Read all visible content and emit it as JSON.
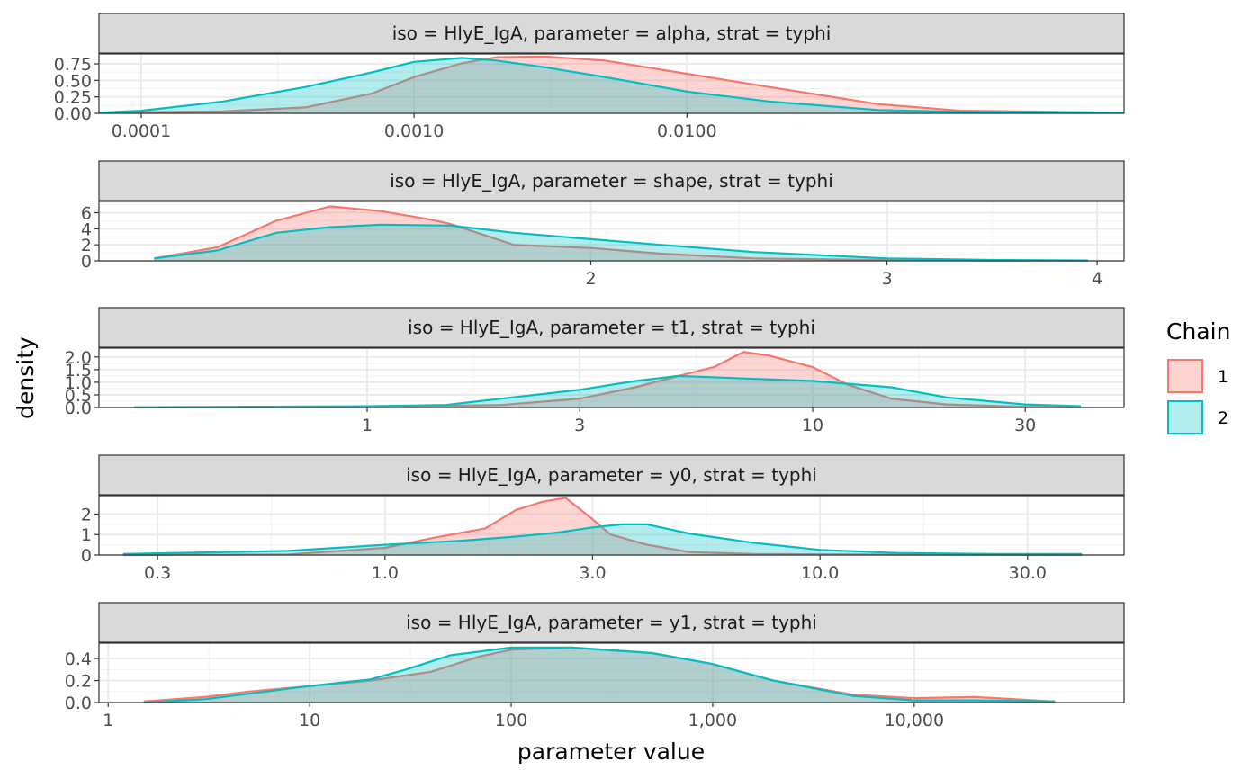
{
  "chart_data": {
    "type": "area",
    "chart_kind": "faceted density plot",
    "facets": [
      {
        "strip_label": "iso = HlyE_IgA, parameter = alpha, strat = typhi",
        "x_scale": "log10",
        "xlim": [
          7e-05,
          0.4
        ],
        "ylim": [
          0,
          0.9
        ],
        "x_ticks": [
          {
            "value": 0.0001,
            "label": "0.0001"
          },
          {
            "value": 0.001,
            "label": "0.0010"
          },
          {
            "value": 0.01,
            "label": "0.0100"
          }
        ],
        "y_ticks": [
          {
            "value": 0,
            "label": "0.00"
          },
          {
            "value": 0.25,
            "label": "0.25"
          },
          {
            "value": 0.5,
            "label": "0.50"
          },
          {
            "value": 0.75,
            "label": "0.75"
          }
        ],
        "series": [
          {
            "chain": "1",
            "x": [
              7e-05,
              0.0002,
              0.0004,
              0.0007,
              0.001,
              0.0015,
              0.002,
              0.003,
              0.005,
              0.01,
              0.02,
              0.05,
              0.1,
              0.4
            ],
            "y": [
              0.01,
              0.03,
              0.09,
              0.3,
              0.55,
              0.76,
              0.85,
              0.86,
              0.8,
              0.6,
              0.4,
              0.14,
              0.04,
              0.01
            ]
          },
          {
            "chain": "2",
            "x": [
              7e-05,
              0.0001,
              0.0002,
              0.0004,
              0.0007,
              0.001,
              0.0015,
              0.002,
              0.003,
              0.005,
              0.01,
              0.02,
              0.05,
              0.1,
              0.4
            ],
            "y": [
              0.01,
              0.04,
              0.18,
              0.4,
              0.62,
              0.78,
              0.84,
              0.8,
              0.7,
              0.55,
              0.33,
              0.18,
              0.05,
              0.02,
              0.01
            ]
          }
        ]
      },
      {
        "strip_label": "iso = HlyE_IgA, parameter = shape, strat = typhi",
        "x_scale": "log10",
        "xlim": [
          1.02,
          4.15
        ],
        "ylim": [
          0,
          7.4
        ],
        "x_ticks": [
          {
            "value": 2,
            "label": "2"
          },
          {
            "value": 3,
            "label": "3"
          },
          {
            "value": 4,
            "label": "4"
          }
        ],
        "y_ticks": [
          {
            "value": 0,
            "label": "0"
          },
          {
            "value": 2,
            "label": "2"
          },
          {
            "value": 4,
            "label": "4"
          },
          {
            "value": 6,
            "label": "6"
          }
        ],
        "series": [
          {
            "chain": "1",
            "x": [
              1.1,
              1.2,
              1.3,
              1.4,
              1.5,
              1.6,
              1.65,
              1.8,
              2.0,
              2.2,
              2.5,
              3.0,
              3.5,
              3.95
            ],
            "y": [
              0.3,
              1.7,
              5.0,
              6.8,
              6.2,
              5.2,
              4.6,
              2.0,
              1.6,
              0.9,
              0.3,
              0.1,
              0.05,
              0.02
            ]
          },
          {
            "chain": "2",
            "x": [
              1.1,
              1.2,
              1.3,
              1.4,
              1.5,
              1.65,
              1.8,
              2.0,
              2.2,
              2.5,
              3.0,
              3.5,
              3.95
            ],
            "y": [
              0.3,
              1.3,
              3.5,
              4.2,
              4.5,
              4.4,
              3.5,
              2.7,
              2.0,
              1.1,
              0.3,
              0.1,
              0.05
            ]
          }
        ]
      },
      {
        "strip_label": "iso = HlyE_IgA, parameter = t1, strat = typhi",
        "x_scale": "log10",
        "xlim": [
          0.25,
          50
        ],
        "ylim": [
          0,
          2.35
        ],
        "x_ticks": [
          {
            "value": 1,
            "label": "1"
          },
          {
            "value": 3,
            "label": "3"
          },
          {
            "value": 10,
            "label": "10"
          },
          {
            "value": 30,
            "label": "30"
          }
        ],
        "y_ticks": [
          {
            "value": 0,
            "label": "0.0"
          },
          {
            "value": 0.5,
            "label": "0.5"
          },
          {
            "value": 1,
            "label": "1.0"
          },
          {
            "value": 1.5,
            "label": "1.5"
          },
          {
            "value": 2,
            "label": "2.0"
          }
        ],
        "series": [
          {
            "chain": "1",
            "x": [
              0.3,
              1,
              2,
              3,
              4,
              5,
              6,
              7,
              8,
              10,
              12,
              15,
              20,
              30,
              40
            ],
            "y": [
              0,
              0.01,
              0.1,
              0.35,
              0.8,
              1.25,
              1.6,
              2.2,
              2.05,
              1.6,
              0.9,
              0.35,
              0.12,
              0.03,
              0.01
            ]
          },
          {
            "chain": "2",
            "x": [
              0.3,
              1,
              1.5,
              2,
              3,
              4,
              5,
              7,
              10,
              15,
              20,
              30,
              40
            ],
            "y": [
              0.01,
              0.05,
              0.1,
              0.35,
              0.7,
              1.05,
              1.25,
              1.15,
              1.05,
              0.8,
              0.4,
              0.12,
              0.05
            ]
          }
        ]
      },
      {
        "strip_label": "iso = HlyE_IgA, parameter = y0, strat = typhi",
        "x_scale": "log10",
        "xlim": [
          0.22,
          50
        ],
        "ylim": [
          0,
          2.9
        ],
        "x_ticks": [
          {
            "value": 0.3,
            "label": "0.3"
          },
          {
            "value": 1,
            "label": "1.0"
          },
          {
            "value": 3,
            "label": "3.0"
          },
          {
            "value": 10,
            "label": "10.0"
          },
          {
            "value": 30,
            "label": "30.0"
          }
        ],
        "y_ticks": [
          {
            "value": 0,
            "label": "0"
          },
          {
            "value": 1,
            "label": "1"
          },
          {
            "value": 2,
            "label": "2"
          }
        ],
        "series": [
          {
            "chain": "1",
            "x": [
              0.25,
              0.6,
              1,
              1.3,
              1.7,
              2.0,
              2.3,
              2.6,
              3.0,
              3.3,
              4.0,
              5.0,
              7.0,
              15,
              40
            ],
            "y": [
              0,
              0.03,
              0.35,
              0.85,
              1.3,
              2.2,
              2.6,
              2.8,
              1.75,
              1.0,
              0.5,
              0.15,
              0.05,
              0.02,
              0
            ]
          },
          {
            "chain": "2",
            "x": [
              0.25,
              0.6,
              1,
              1.5,
              2.0,
              2.5,
              3.0,
              3.5,
              4.0,
              5.0,
              7.0,
              10,
              15,
              25,
              40
            ],
            "y": [
              0.05,
              0.2,
              0.5,
              0.7,
              0.9,
              1.1,
              1.35,
              1.5,
              1.5,
              1.05,
              0.6,
              0.25,
              0.1,
              0.05,
              0.05
            ]
          }
        ]
      },
      {
        "strip_label": "iso = HlyE_IgA, parameter = y1, strat = typhi",
        "x_scale": "log10",
        "xlim": [
          0.9,
          110000
        ],
        "ylim": [
          0,
          0.54
        ],
        "x_ticks": [
          {
            "value": 1,
            "label": "1"
          },
          {
            "value": 10,
            "label": "10"
          },
          {
            "value": 100,
            "label": "100"
          },
          {
            "value": 1000,
            "label": "1,000"
          },
          {
            "value": 10000,
            "label": "10,000"
          }
        ],
        "y_ticks": [
          {
            "value": 0,
            "label": "0.0"
          },
          {
            "value": 0.2,
            "label": "0.2"
          },
          {
            "value": 0.4,
            "label": "0.4"
          }
        ],
        "series": [
          {
            "chain": "1",
            "x": [
              1.5,
              3,
              5,
              10,
              20,
              40,
              70,
              100,
              200,
              500,
              1000,
              2000,
              5000,
              10000,
              20000,
              50000
            ],
            "y": [
              0.01,
              0.05,
              0.1,
              0.15,
              0.2,
              0.28,
              0.42,
              0.48,
              0.5,
              0.45,
              0.35,
              0.2,
              0.07,
              0.04,
              0.05,
              0.01
            ]
          },
          {
            "chain": "2",
            "x": [
              1.5,
              3,
              5,
              10,
              20,
              30,
              50,
              100,
              200,
              500,
              1000,
              2000,
              5000,
              10000,
              20000,
              50000
            ],
            "y": [
              0.0,
              0.03,
              0.08,
              0.15,
              0.21,
              0.3,
              0.43,
              0.5,
              0.5,
              0.45,
              0.35,
              0.2,
              0.06,
              0.02,
              0.02,
              0.01
            ]
          }
        ]
      }
    ],
    "xlabel": "parameter value",
    "ylabel": "density",
    "legend": {
      "title": "Chain",
      "position": "right",
      "entries": [
        {
          "label": "1",
          "line_color": "#F8766D",
          "fill_color": "#FDD3CF"
        },
        {
          "label": "2",
          "line_color": "#00BFC4",
          "fill_color": "#B2ECED"
        }
      ]
    },
    "grid": true,
    "fill_alpha": 0.3
  }
}
